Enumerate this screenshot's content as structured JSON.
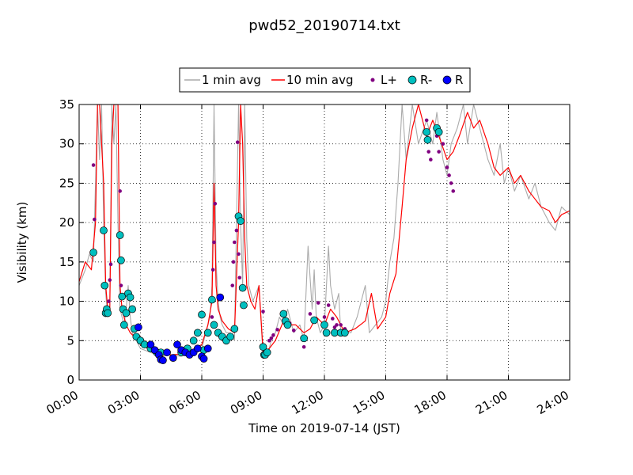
{
  "chart_data": {
    "type": "line",
    "title": "pwd52_20190714.txt",
    "xlabel": "Time on 2019-07-14 (JST)",
    "ylabel": "Visibility (km)",
    "xlim": [
      0,
      24
    ],
    "ylim": [
      0,
      35
    ],
    "x_unit": "hours",
    "xticks": [
      "00:00",
      "03:00",
      "06:00",
      "09:00",
      "12:00",
      "15:00",
      "18:00",
      "21:00",
      "24:00"
    ],
    "yticks": [
      0,
      5,
      10,
      15,
      20,
      25,
      30,
      35
    ],
    "grid": true,
    "legend_position": "top-center",
    "legend": [
      "1 min avg",
      "10 min avg",
      "L+",
      "R-",
      "R"
    ],
    "colors": {
      "one_min": "#aaaaaa",
      "ten_min": "#ff0000",
      "l_plus": "#800080",
      "r_minus": "#00bfbf",
      "r": "#0000ff"
    },
    "series": [
      {
        "name": "1 min avg",
        "style": "line",
        "x": [
          0.0,
          0.3,
          0.5,
          0.7,
          0.8,
          0.9,
          1.0,
          1.1,
          1.2,
          1.3,
          1.4,
          1.5,
          1.6,
          1.7,
          1.8,
          1.9,
          2.0,
          2.1,
          2.2,
          2.3,
          2.4,
          2.5,
          2.6,
          2.8,
          3.0,
          3.5,
          4.0,
          4.5,
          5.0,
          5.5,
          6.0,
          6.2,
          6.4,
          6.5,
          6.6,
          6.7,
          6.8,
          6.9,
          7.0,
          7.2,
          7.4,
          7.6,
          7.8,
          7.9,
          8.0,
          8.1,
          8.2,
          8.3,
          8.5,
          8.8,
          9.0,
          9.2,
          9.4,
          9.6,
          9.8,
          10.0,
          10.2,
          10.5,
          10.8,
          11.0,
          11.2,
          11.4,
          11.5,
          11.6,
          11.8,
          12.0,
          12.2,
          12.3,
          12.5,
          12.7,
          12.8,
          13.0,
          13.3,
          13.6,
          14.0,
          14.2,
          14.5,
          14.8,
          15.0,
          15.2,
          15.4,
          15.6,
          15.8,
          16.0,
          16.3,
          16.6,
          17.0,
          17.3,
          17.5,
          17.8,
          18.0,
          18.2,
          18.5,
          18.8,
          19.0,
          19.3,
          19.6,
          20.0,
          20.3,
          20.6,
          20.8,
          21.0,
          21.3,
          21.6,
          22.0,
          22.3,
          22.6,
          23.0,
          23.3,
          23.6,
          24.0
        ],
        "y": [
          12,
          14,
          16,
          15,
          25,
          35,
          28,
          35,
          20,
          11,
          8,
          9,
          35,
          30,
          35,
          20,
          9,
          8,
          7,
          9,
          12,
          8,
          6,
          5,
          4,
          3.5,
          3,
          3.2,
          3,
          3.5,
          4,
          6,
          8,
          12,
          35,
          15,
          10,
          8,
          7,
          6,
          6,
          5,
          35,
          20,
          12,
          35,
          18,
          12,
          10,
          12,
          3,
          3,
          5,
          6,
          8,
          7,
          9,
          6,
          7,
          5,
          17,
          9,
          14,
          8,
          6,
          7,
          17,
          12,
          9,
          11,
          6,
          6,
          6,
          8,
          12,
          6,
          7,
          8,
          10,
          15,
          18,
          25,
          35,
          28,
          35,
          30,
          33,
          30,
          34,
          28,
          26,
          30,
          32,
          35,
          30,
          35,
          32,
          28,
          26,
          30,
          25,
          27,
          24,
          26,
          23,
          25,
          22,
          20,
          19,
          22,
          21
        ]
      },
      {
        "name": "10 min avg",
        "style": "line",
        "x": [
          0.0,
          0.3,
          0.6,
          0.8,
          0.9,
          1.0,
          1.2,
          1.3,
          1.4,
          1.5,
          1.6,
          1.7,
          1.8,
          1.9,
          2.0,
          2.1,
          2.2,
          2.3,
          2.5,
          2.7,
          3.0,
          3.5,
          4.0,
          4.5,
          5.0,
          5.5,
          6.0,
          6.3,
          6.5,
          6.6,
          6.7,
          6.8,
          7.0,
          7.3,
          7.6,
          7.8,
          7.9,
          8.0,
          8.1,
          8.2,
          8.4,
          8.6,
          8.8,
          9.0,
          9.3,
          9.6,
          10.0,
          10.3,
          10.6,
          11.0,
          11.3,
          11.6,
          12.0,
          12.3,
          12.6,
          13.0,
          13.5,
          14.0,
          14.3,
          14.6,
          15.0,
          15.2,
          15.5,
          15.8,
          16.0,
          16.3,
          16.6,
          17.0,
          17.3,
          17.6,
          18.0,
          18.3,
          18.6,
          19.0,
          19.3,
          19.6,
          20.0,
          20.3,
          20.6,
          21.0,
          21.3,
          21.6,
          22.0,
          22.3,
          22.6,
          23.0,
          23.3,
          23.6,
          24.0
        ],
        "y": [
          12.5,
          15,
          14,
          20,
          35,
          35,
          25,
          12,
          9,
          9,
          30,
          35,
          35,
          35,
          12,
          9,
          8,
          7,
          6,
          5.5,
          4.5,
          3.8,
          3.3,
          3.2,
          3.3,
          3.8,
          4.5,
          7,
          10,
          25,
          12,
          9,
          7.5,
          6.5,
          6,
          20,
          35,
          30,
          18,
          12,
          10,
          9,
          12,
          3.5,
          4,
          5,
          7.5,
          7,
          7,
          6,
          6.5,
          8,
          7,
          9,
          8,
          6,
          6.5,
          7.5,
          11,
          6.5,
          8,
          11,
          13.5,
          22,
          28,
          32,
          35,
          31,
          33,
          31,
          28,
          29,
          31,
          34,
          32,
          33,
          30,
          27,
          26,
          27,
          25,
          26,
          24,
          23,
          22,
          21.5,
          20,
          21,
          21.5
        ]
      },
      {
        "name": "L+",
        "style": "marker",
        "x": [
          0.7,
          0.75,
          1.45,
          1.5,
          1.55,
          2.0,
          2.05,
          2.1,
          6.5,
          6.55,
          6.6,
          6.65,
          7.5,
          7.55,
          7.6,
          7.7,
          7.75,
          7.8,
          7.85,
          9.0,
          9.3,
          9.4,
          9.5,
          9.7,
          10.0,
          10.3,
          10.5,
          11.0,
          11.3,
          11.5,
          11.7,
          12.0,
          12.2,
          12.4,
          12.5,
          12.6,
          12.8,
          13.0,
          17.0,
          17.1,
          17.2,
          17.5,
          17.6,
          17.8,
          18.0,
          18.1,
          18.2,
          18.3
        ],
        "y": [
          27.3,
          20.4,
          10,
          12.7,
          14.7,
          24,
          12,
          9,
          8,
          14,
          17.5,
          22.4,
          12,
          15,
          17.5,
          19,
          30.2,
          16,
          13,
          8.7,
          5,
          5.3,
          5.7,
          6.4,
          7.6,
          7.2,
          6.3,
          4.2,
          8.4,
          7.7,
          9.8,
          8,
          9.5,
          7.8,
          6.7,
          7,
          7,
          6.5,
          33,
          29,
          28,
          31,
          29,
          30,
          27,
          26,
          25,
          24
        ]
      },
      {
        "name": "R-",
        "style": "marker",
        "x": [
          0.7,
          1.2,
          1.25,
          1.3,
          1.35,
          1.4,
          2.0,
          2.05,
          2.1,
          2.15,
          2.2,
          2.3,
          2.4,
          2.5,
          2.6,
          2.7,
          2.8,
          3.0,
          3.2,
          3.5,
          3.8,
          4.0,
          5.0,
          5.3,
          5.6,
          5.8,
          6.0,
          6.1,
          6.3,
          6.5,
          6.6,
          6.8,
          7.0,
          7.2,
          7.4,
          7.6,
          7.8,
          7.9,
          8.0,
          8.05,
          9.0,
          9.05,
          9.1,
          9.2,
          10.0,
          10.1,
          10.2,
          11.0,
          11.5,
          12.0,
          12.1,
          12.5,
          12.8,
          13.0,
          17.0,
          17.05,
          17.5,
          17.6
        ],
        "y": [
          16.2,
          19,
          12,
          8.5,
          9,
          8.5,
          18.4,
          15.2,
          10.6,
          9,
          7,
          8.5,
          11,
          10.5,
          9,
          6.5,
          5.5,
          5,
          4.5,
          4,
          3.5,
          3.5,
          3.5,
          4,
          5,
          6,
          8.3,
          3.8,
          6,
          10.2,
          7,
          6,
          5.5,
          5,
          5.5,
          6.5,
          20.8,
          20.2,
          11.7,
          9.5,
          4.2,
          3.2,
          3.2,
          3.5,
          8.4,
          7.5,
          7,
          5.3,
          7.6,
          7,
          6,
          6,
          6,
          6,
          31.5,
          30.5,
          32,
          31.5
        ]
      },
      {
        "name": "R",
        "style": "marker",
        "x": [
          2.9,
          3.5,
          3.7,
          3.9,
          4.0,
          4.1,
          4.3,
          4.6,
          4.8,
          5.0,
          5.2,
          5.4,
          5.6,
          5.8,
          6.0,
          6.1,
          6.3,
          6.9
        ],
        "y": [
          6.7,
          4.5,
          3.8,
          3.2,
          2.6,
          2.5,
          3.5,
          2.8,
          4.5,
          3.8,
          3.5,
          3.2,
          3.5,
          4,
          3,
          2.7,
          4,
          10.5
        ]
      }
    ]
  }
}
